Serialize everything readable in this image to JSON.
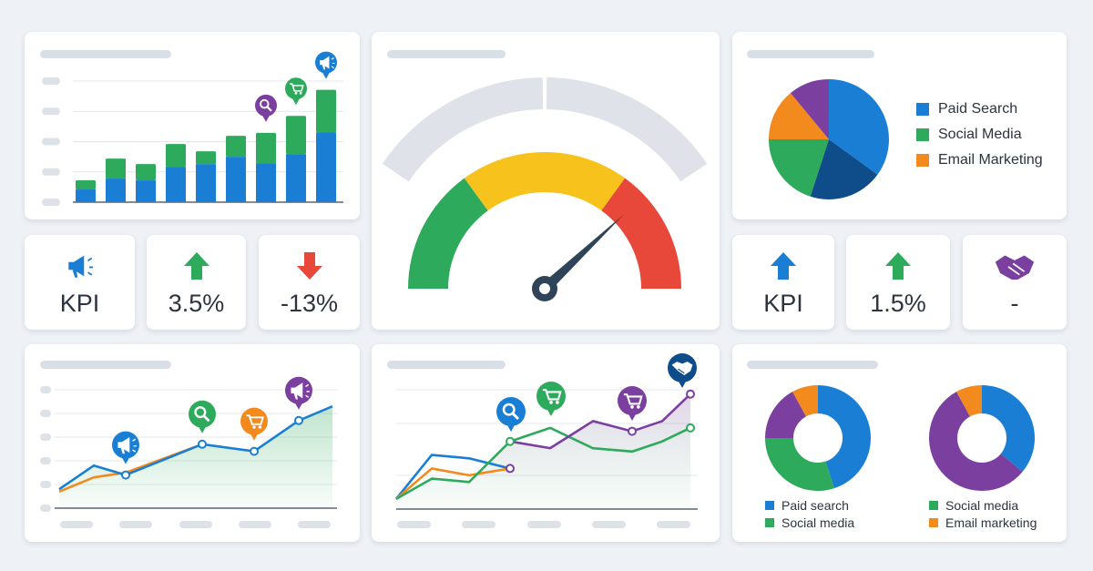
{
  "colors": {
    "blue": "#1a7fd4",
    "green": "#2eaa5c",
    "orange": "#f28a1e",
    "purple": "#7b3fa0",
    "navy": "#0f4c8a",
    "yellow": "#f7c21c",
    "red": "#e8483a",
    "gray": "#dde2e9"
  },
  "kpis": [
    {
      "icon": "megaphone-icon",
      "value": "KPI"
    },
    {
      "icon": "arrow-up-icon",
      "value": "3.5%"
    },
    {
      "icon": "arrow-down-icon",
      "value": "-13%"
    },
    {
      "icon": "arrow-up-icon",
      "value": "KPI"
    },
    {
      "icon": "arrow-up-icon",
      "value": "1.5%"
    },
    {
      "icon": "handshake-icon",
      "value": "-"
    }
  ],
  "pie_legend": [
    "Paid Search",
    "Social Media",
    "Email Marketing"
  ],
  "donut_legend": {
    "left": [
      "Paid search",
      "Social media"
    ],
    "right": [
      "Social media",
      "Email marketing"
    ]
  },
  "chart_data": [
    {
      "type": "bar",
      "stacked": true,
      "ylim": [
        0,
        4
      ],
      "grid": true,
      "series": [
        {
          "color": "#1a7fd4",
          "values": [
            0.42,
            0.78,
            0.72,
            1.17,
            1.26,
            1.5,
            1.29,
            1.59,
            2.3
          ]
        },
        {
          "color": "#2eaa5c",
          "values": [
            0.3,
            0.66,
            0.54,
            0.75,
            0.42,
            0.69,
            1.0,
            1.26,
            1.41
          ]
        }
      ],
      "markers": [
        {
          "index": 6,
          "icon": "search-icon",
          "color": "#7b3fa0"
        },
        {
          "index": 7,
          "icon": "cart-icon",
          "color": "#2eaa5c"
        },
        {
          "index": 8,
          "icon": "megaphone-icon",
          "color": "#1a7fd4"
        }
      ]
    },
    {
      "type": "gauge",
      "value": 0.76,
      "bands": [
        {
          "color": "#2eaa5c",
          "to": 0.3
        },
        {
          "color": "#f7c21c",
          "to": 0.7
        },
        {
          "color": "#e8483a",
          "to": 1
        }
      ]
    },
    {
      "type": "pie",
      "slices": [
        {
          "name": "Paid Search",
          "value": 35,
          "color": "#1a7fd4"
        },
        {
          "value": 20,
          "color": "#0f4c8a"
        },
        {
          "name": "Social Media",
          "value": 20,
          "color": "#2eaa5c"
        },
        {
          "name": "Email Marketing",
          "value": 14,
          "color": "#f28a1e"
        },
        {
          "value": 11,
          "color": "#7b3fa0"
        }
      ]
    },
    {
      "type": "area",
      "ylim": [
        0,
        5
      ],
      "grid": true,
      "series": [
        {
          "color": "#1a7fd4",
          "fill": "#2eaa5c",
          "values": [
            0.8,
            1.8,
            1.4,
            2.7,
            2.4,
            3.7,
            4.3
          ]
        },
        {
          "color": "#f28a1e",
          "values": [
            0.7,
            1.3,
            1.5,
            2.7
          ]
        }
      ],
      "markers": [
        {
          "index": 2,
          "icon": "megaphone-icon",
          "color": "#1a7fd4"
        },
        {
          "index": 3,
          "icon": "search-icon",
          "color": "#2eaa5c"
        },
        {
          "index": 4,
          "icon": "cart-icon",
          "color": "#f28a1e"
        },
        {
          "index": 5,
          "icon": "megaphone-icon",
          "color": "#7b3fa0"
        }
      ]
    },
    {
      "type": "line",
      "ylim": [
        0,
        3.5
      ],
      "grid": true,
      "series": [
        {
          "color": "#1a7fd4",
          "values": [
            0.3,
            1.6,
            1.5,
            1.2
          ]
        },
        {
          "color": "#f28a1e",
          "values": [
            0.3,
            1.2,
            1.0,
            1.2
          ]
        },
        {
          "color": "#2eaa5c",
          "values": [
            0.3,
            0.9,
            0.8,
            2.0,
            2.4,
            1.8,
            1.7,
            2.0,
            2.4
          ]
        },
        {
          "color": "#7b3fa0",
          "offset": 3,
          "values": [
            2.0,
            1.8,
            2.6,
            2.3,
            2.6,
            3.4
          ]
        }
      ],
      "markers": [
        {
          "icon": "search-icon",
          "color": "#1a7fd4"
        },
        {
          "icon": "cart-icon",
          "color": "#2eaa5c"
        },
        {
          "icon": "cart-icon",
          "color": "#7b3fa0"
        },
        {
          "icon": "handshake-icon",
          "color": "#0f4c8a"
        }
      ]
    },
    {
      "type": "donut",
      "slices": [
        {
          "name": "Paid search",
          "value": 45,
          "color": "#1a7fd4"
        },
        {
          "name": "Social media",
          "value": 30,
          "color": "#2eaa5c"
        },
        {
          "value": 17,
          "color": "#7b3fa0"
        },
        {
          "value": 8,
          "color": "#f28a1e"
        }
      ]
    },
    {
      "type": "donut",
      "slices": [
        {
          "value": 36,
          "color": "#1a7fd4"
        },
        {
          "name": "Social media",
          "value": 56,
          "color": "#7b3fa0"
        },
        {
          "name": "Email marketing",
          "value": 8,
          "color": "#f28a1e"
        }
      ]
    }
  ]
}
